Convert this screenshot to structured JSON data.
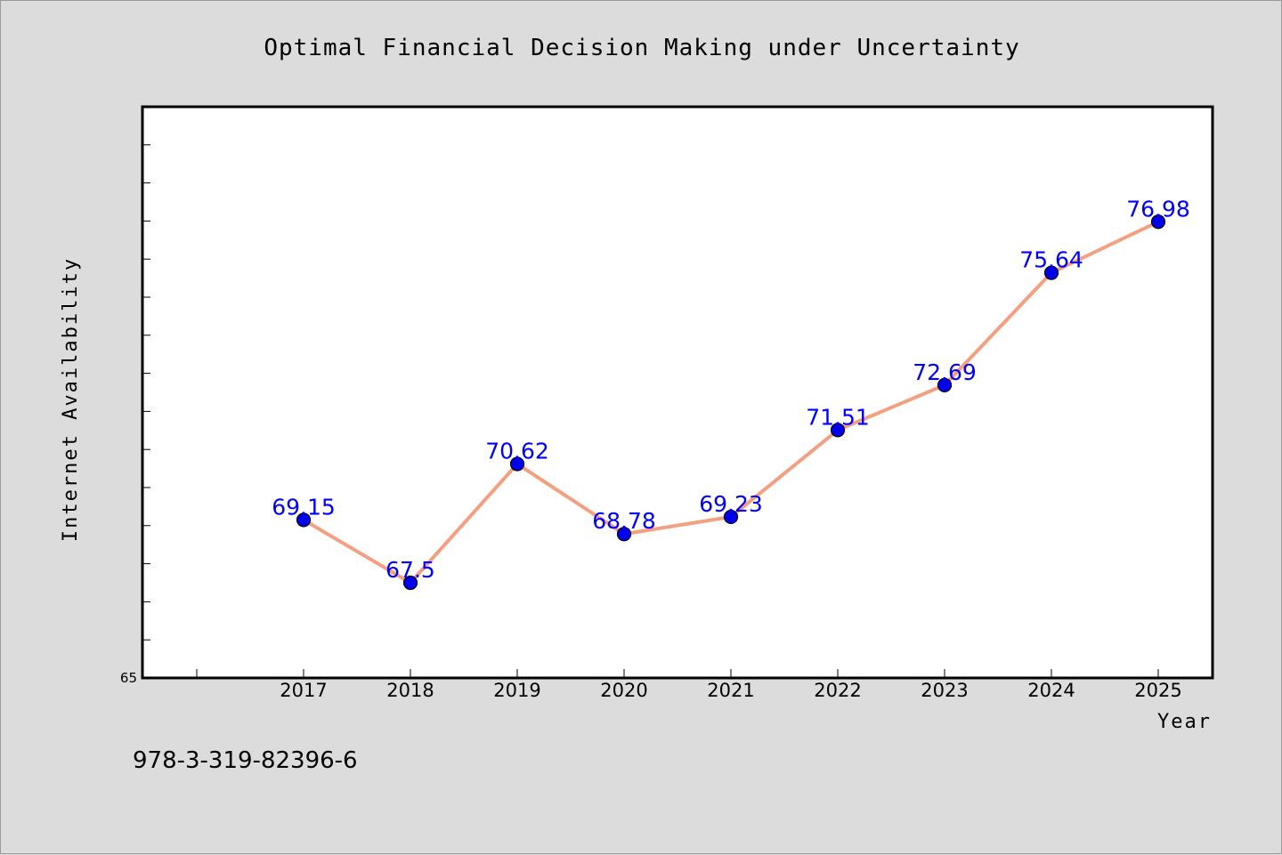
{
  "chart_data": {
    "type": "line",
    "title": "Optimal Financial Decision Making under Uncertainty",
    "xlabel": "Year",
    "ylabel": "Internet Availability",
    "categories": [
      "2017",
      "2018",
      "2019",
      "2020",
      "2021",
      "2022",
      "2023",
      "2024",
      "2025"
    ],
    "series": [
      {
        "values": [
          69.15,
          67.5,
          70.62,
          68.78,
          69.23,
          71.51,
          72.69,
          75.64,
          76.98
        ],
        "labels": [
          "69.15",
          "67.5",
          "70.62",
          "68.78",
          "69.23",
          "71.51",
          "72.69",
          "75.64",
          "76.98"
        ],
        "line_color": "#f4a080",
        "marker_color": "#0000ee"
      }
    ],
    "ylim": [
      65,
      80
    ],
    "y_tick_labels": [
      "65"
    ],
    "grid": false,
    "legend": "none"
  },
  "footer": {
    "isbn": "978-3-319-82396-6"
  },
  "colors": {
    "background": "#dcdcdc",
    "plot_area": "#ffffff",
    "data_label": "#0000ff"
  }
}
